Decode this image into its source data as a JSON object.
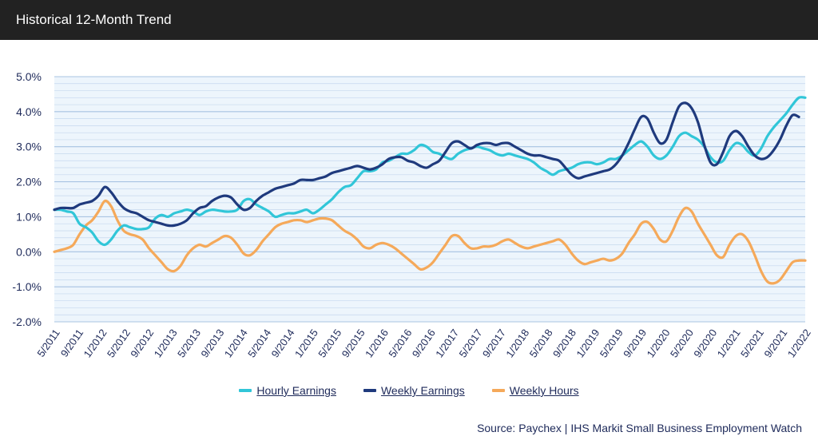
{
  "header": {
    "title": "Historical 12-Month Trend"
  },
  "source": "Source: Paychex | IHS Markit Small Business Employment Watch",
  "colors": {
    "hourly": "#31c6d8",
    "weekly_earnings": "#1f3a7d",
    "weekly_hours": "#f5a95a",
    "plot_bg": "#edf5fc",
    "grid": "#c5d8ee",
    "axis_text": "#1e2a5a"
  },
  "chart_data": {
    "type": "line",
    "title": "Historical 12-Month Trend",
    "xlabel": "",
    "ylabel": "",
    "ylim": [
      -2.0,
      5.0
    ],
    "yticks": [
      "5.0%",
      "4.0%",
      "3.0%",
      "2.0%",
      "1.0%",
      "0.0%",
      "-1.0%",
      "-2.0%"
    ],
    "ytick_values": [
      5,
      4,
      3,
      2,
      1,
      0,
      -1,
      -2
    ],
    "grid": true,
    "legend_position": "bottom-center",
    "xtick_labels": [
      "5/2011",
      "9/2011",
      "1/2012",
      "5/2012",
      "9/2012",
      "1/2013",
      "5/2013",
      "9/2013",
      "1/2014",
      "5/2014",
      "9/2014",
      "1/2015",
      "5/2015",
      "9/2015",
      "1/2016",
      "5/2016",
      "9/2016",
      "1/2017",
      "5/2017",
      "9/2017",
      "1/2018",
      "5/2018",
      "9/2018",
      "1/2019",
      "5/2019",
      "9/2019",
      "1/2020",
      "5/2020",
      "9/2020",
      "1/2021",
      "5/2021",
      "9/2021",
      "1/2022"
    ],
    "series": [
      {
        "name": "Hourly Earnings",
        "color_key": "hourly",
        "values": [
          1.2,
          1.2,
          1.15,
          1.1,
          0.8,
          0.7,
          0.55,
          0.3,
          0.2,
          0.35,
          0.6,
          0.75,
          0.7,
          0.65,
          0.65,
          0.7,
          0.95,
          1.05,
          1.0,
          1.1,
          1.15,
          1.2,
          1.15,
          1.05,
          1.15,
          1.2,
          1.18,
          1.15,
          1.15,
          1.2,
          1.45,
          1.5,
          1.35,
          1.25,
          1.15,
          1.0,
          1.05,
          1.1,
          1.1,
          1.15,
          1.2,
          1.1,
          1.2,
          1.35,
          1.5,
          1.7,
          1.85,
          1.9,
          2.1,
          2.3,
          2.3,
          2.35,
          2.55,
          2.6,
          2.7,
          2.8,
          2.8,
          2.9,
          3.05,
          3.0,
          2.85,
          2.8,
          2.7,
          2.65,
          2.8,
          2.9,
          2.95,
          3.0,
          2.95,
          2.9,
          2.8,
          2.75,
          2.8,
          2.75,
          2.7,
          2.65,
          2.55,
          2.4,
          2.3,
          2.2,
          2.3,
          2.35,
          2.4,
          2.5,
          2.55,
          2.55,
          2.5,
          2.55,
          2.65,
          2.65,
          2.75,
          2.9,
          3.05,
          3.15,
          3.0,
          2.75,
          2.65,
          2.75,
          3.0,
          3.3,
          3.4,
          3.3,
          3.2,
          3.0,
          2.7,
          2.55,
          2.6,
          2.9,
          3.1,
          3.05,
          2.85,
          2.75,
          2.95,
          3.3,
          3.55,
          3.75,
          3.95,
          4.2,
          4.4,
          4.4
        ]
      },
      {
        "name": "Weekly Earnings",
        "color_key": "weekly_earnings",
        "values": [
          1.2,
          1.25,
          1.25,
          1.25,
          1.35,
          1.4,
          1.45,
          1.6,
          1.85,
          1.7,
          1.45,
          1.25,
          1.15,
          1.1,
          1.0,
          0.9,
          0.85,
          0.8,
          0.75,
          0.75,
          0.8,
          0.9,
          1.1,
          1.25,
          1.3,
          1.45,
          1.55,
          1.6,
          1.55,
          1.35,
          1.2,
          1.25,
          1.45,
          1.6,
          1.7,
          1.8,
          1.85,
          1.9,
          1.95,
          2.05,
          2.05,
          2.05,
          2.1,
          2.15,
          2.25,
          2.3,
          2.35,
          2.4,
          2.45,
          2.4,
          2.35,
          2.4,
          2.5,
          2.65,
          2.7,
          2.7,
          2.6,
          2.55,
          2.45,
          2.4,
          2.5,
          2.6,
          2.85,
          3.1,
          3.15,
          3.05,
          2.95,
          3.05,
          3.1,
          3.1,
          3.05,
          3.1,
          3.1,
          3.0,
          2.9,
          2.8,
          2.75,
          2.75,
          2.7,
          2.65,
          2.6,
          2.4,
          2.2,
          2.1,
          2.15,
          2.2,
          2.25,
          2.3,
          2.35,
          2.5,
          2.75,
          3.1,
          3.5,
          3.85,
          3.8,
          3.4,
          3.1,
          3.2,
          3.7,
          4.15,
          4.25,
          4.1,
          3.7,
          3.05,
          2.55,
          2.5,
          2.85,
          3.3,
          3.45,
          3.3,
          3.0,
          2.75,
          2.65,
          2.7,
          2.9,
          3.2,
          3.6,
          3.9,
          3.85
        ]
      },
      {
        "name": "Weekly Hours",
        "color_key": "weekly_hours",
        "values": [
          0.0,
          0.05,
          0.1,
          0.2,
          0.5,
          0.75,
          0.9,
          1.15,
          1.45,
          1.3,
          0.9,
          0.6,
          0.5,
          0.45,
          0.35,
          0.1,
          -0.1,
          -0.3,
          -0.5,
          -0.55,
          -0.4,
          -0.1,
          0.1,
          0.2,
          0.15,
          0.25,
          0.35,
          0.45,
          0.4,
          0.2,
          -0.05,
          -0.1,
          0.05,
          0.3,
          0.5,
          0.7,
          0.8,
          0.85,
          0.9,
          0.9,
          0.85,
          0.9,
          0.95,
          0.95,
          0.9,
          0.75,
          0.6,
          0.5,
          0.35,
          0.15,
          0.1,
          0.2,
          0.25,
          0.2,
          0.1,
          -0.05,
          -0.2,
          -0.35,
          -0.5,
          -0.45,
          -0.3,
          -0.05,
          0.2,
          0.45,
          0.45,
          0.25,
          0.1,
          0.1,
          0.15,
          0.15,
          0.2,
          0.3,
          0.35,
          0.25,
          0.15,
          0.1,
          0.15,
          0.2,
          0.25,
          0.3,
          0.35,
          0.2,
          -0.05,
          -0.25,
          -0.35,
          -0.3,
          -0.25,
          -0.2,
          -0.25,
          -0.2,
          -0.05,
          0.25,
          0.5,
          0.8,
          0.85,
          0.65,
          0.35,
          0.3,
          0.6,
          1.0,
          1.25,
          1.15,
          0.8,
          0.5,
          0.2,
          -0.1,
          -0.15,
          0.2,
          0.45,
          0.5,
          0.3,
          -0.1,
          -0.55,
          -0.85,
          -0.9,
          -0.8,
          -0.55,
          -0.3,
          -0.25,
          -0.25
        ]
      }
    ]
  },
  "legend": {
    "items": [
      {
        "label": "Hourly Earnings",
        "color_key": "hourly"
      },
      {
        "label": "Weekly Earnings",
        "color_key": "weekly_earnings"
      },
      {
        "label": "Weekly Hours",
        "color_key": "weekly_hours"
      }
    ]
  }
}
